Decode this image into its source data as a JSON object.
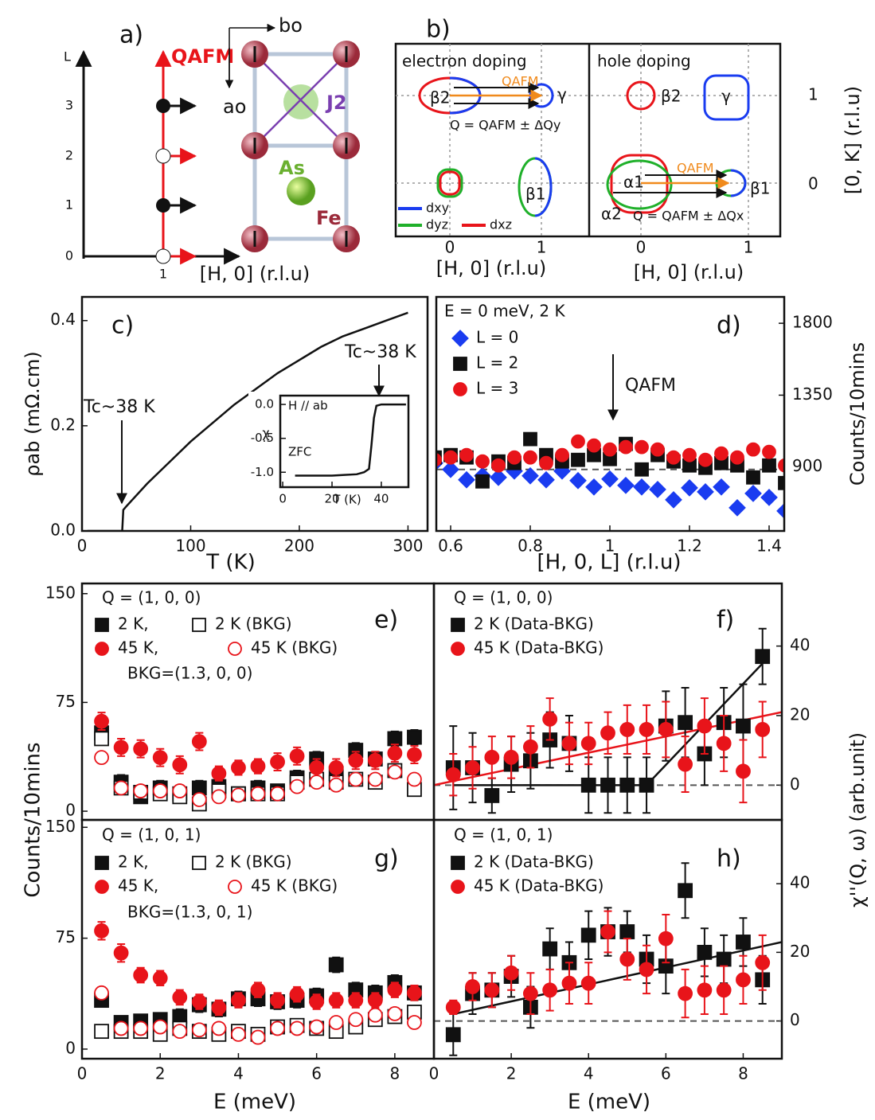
{
  "panel_a": {
    "label": "a)",
    "axis_label": "L",
    "l_ticks": [
      "0",
      "1",
      "2",
      "3"
    ],
    "h_tick": "1",
    "x_label": "[H, 0] (r.l.u)",
    "q_label": "QAFM",
    "b_axis": "bo",
    "a_axis": "ao",
    "j2": "J2",
    "as": "As",
    "fe": "Fe"
  },
  "panel_b": {
    "label": "b)",
    "left_title": "electron doping",
    "right_title": "hole doping",
    "beta2_left": "β2",
    "gamma_left": "γ",
    "q_left": "QAFM",
    "q_eq_left": "Q = QAFM ± ΔQy",
    "beta1_left": "β1",
    "dxy": "dxy",
    "dyz": "dyz",
    "dxz": "dxz",
    "beta2_right": "β2",
    "gamma_right": "γ",
    "alpha1": "α1",
    "alpha2": "α2",
    "q_right": "QAFM",
    "beta1_right": "β1",
    "q_eq_right": "Q = QAFM ± ΔQx",
    "k_ticks": [
      "1",
      "0"
    ],
    "k_label": "[0, K] (r.l.u)",
    "h_ticks_left": [
      "0",
      "1"
    ],
    "h_ticks_right": [
      "0",
      "1"
    ],
    "h_label_left": "[H, 0] (r.l.u)",
    "h_label_right": "[H, 0] (r.l.u)"
  },
  "chart_data": [
    {
      "type": "line",
      "x_label": "T (K)",
      "y_label": "ρab (mΩ.cm)",
      "annotations": [
        "c)",
        "Tc~38 K",
        "Tc~38 K"
      ],
      "color": "#111",
      "xlim": [
        0,
        318
      ],
      "ylim": [
        0,
        0.445
      ],
      "xticks": [
        0,
        100,
        200,
        300
      ],
      "yticks": [
        {
          "value": 0,
          "label": "0.0"
        },
        0.2,
        0.4
      ],
      "x": [
        5,
        37,
        38,
        40,
        60,
        80,
        100,
        120,
        140,
        160,
        180,
        200,
        220,
        240,
        260,
        280,
        300
      ],
      "values": [
        0,
        0,
        0.04,
        0.045,
        0.09,
        0.13,
        0.17,
        0.205,
        0.24,
        0.27,
        0.3,
        0.325,
        0.35,
        0.37,
        0.385,
        0.4,
        0.415
      ]
    },
    {
      "type": "line",
      "x_label": "T (K)",
      "y_label": "χ",
      "annotations": [
        "H // ab",
        "ZFC"
      ],
      "color": "#111",
      "xlim": [
        -1,
        51
      ],
      "ylim": [
        -1.22,
        0.13
      ],
      "xticks": [
        0,
        20,
        40
      ],
      "yticks": [
        {
          "value": 0,
          "label": "0.0"
        },
        -0.5,
        {
          "value": -1,
          "label": "-1.0"
        }
      ],
      "x": [
        5,
        10,
        15,
        20,
        25,
        30,
        33,
        35,
        36,
        37,
        38,
        40,
        45,
        50
      ],
      "values": [
        -1.05,
        -1.05,
        -1.05,
        -1.05,
        -1.04,
        -1.03,
        -1.0,
        -0.95,
        -0.6,
        -0.2,
        -0.02,
        0,
        0,
        0
      ]
    },
    {
      "type": "scatter",
      "x_label": "[H, 0, L] (r.l.u)",
      "y_label": "Counts/10mins",
      "annotations": [
        "E = 0 meV, 2 K",
        "QAFM",
        "d)"
      ],
      "y_side": "right",
      "xlim": [
        0.564,
        1.438
      ],
      "ylim": [
        500,
        1965
      ],
      "xticks": [
        0.6,
        0.8,
        1,
        1.2,
        1.4
      ],
      "yticks": [
        900,
        1350,
        1800
      ],
      "hline": 885,
      "x": [
        0.56,
        0.6,
        0.64,
        0.68,
        0.72,
        0.76,
        0.8,
        0.84,
        0.88,
        0.92,
        0.96,
        1,
        1.04,
        1.08,
        1.12,
        1.16,
        1.2,
        1.24,
        1.28,
        1.32,
        1.36,
        1.4,
        1.44
      ],
      "series": [
        {
          "name": "L = 0",
          "color": "#1a3cf0",
          "marker": "diamond",
          "filled": true,
          "values": [
            925,
            885,
            820,
            845,
            835,
            875,
            845,
            820,
            875,
            815,
            775,
            825,
            785,
            775,
            760,
            695,
            770,
            745,
            775,
            645,
            735,
            710,
            625
          ]
        },
        {
          "name": "L = 2",
          "color": "#111",
          "marker": "square",
          "filled": true,
          "values": [
            960,
            975,
            960,
            810,
            935,
            925,
            1075,
            975,
            935,
            945,
            975,
            950,
            1045,
            885,
            975,
            935,
            910,
            895,
            925,
            910,
            835,
            910,
            800
          ]
        },
        {
          "name": "L = 3",
          "color": "#e8141a",
          "marker": "circle",
          "filled": true,
          "values": [
            945,
            960,
            975,
            935,
            910,
            960,
            960,
            925,
            975,
            1060,
            1035,
            1010,
            1025,
            1025,
            1010,
            960,
            975,
            945,
            985,
            960,
            1010,
            995,
            910
          ]
        }
      ]
    },
    {
      "type": "scatter",
      "y_label": "Counts/10mins",
      "annotations": [
        "Q = (1, 0, 0)",
        "BKG=(1.3, 0, 0)",
        "e)"
      ],
      "xlim": [
        0,
        9
      ],
      "ylim": [
        -6,
        157
      ],
      "yticks": [
        0,
        75,
        150
      ],
      "x": [
        0.5,
        1,
        1.5,
        2,
        2.5,
        3,
        3.5,
        4,
        4.5,
        5,
        5.5,
        6,
        6.5,
        7,
        7.5,
        8,
        8.5
      ],
      "series": [
        {
          "name": "2 K,",
          "color": "#111",
          "marker": "square",
          "filled": true,
          "values": [
            54,
            20,
            10,
            16,
            12,
            16,
            17,
            12,
            16,
            14,
            23,
            36,
            26,
            42,
            36,
            50,
            51
          ],
          "errors": [
            5,
            5,
            4,
            5,
            4,
            5,
            5,
            4,
            5,
            4,
            5,
            5,
            5,
            5,
            5,
            5,
            5
          ]
        },
        {
          "name": "2 K (BKG)",
          "color": "#111",
          "marker": "square",
          "filled": false,
          "values": [
            50,
            16,
            13,
            12,
            10,
            5,
            14,
            12,
            12,
            12,
            20,
            22,
            20,
            22,
            20,
            28,
            15
          ]
        },
        {
          "name": "45 K,",
          "color": "#e8141a",
          "marker": "circle",
          "filled": true,
          "values": [
            62,
            44,
            43,
            37,
            32,
            48,
            26,
            30,
            31,
            34,
            38,
            30,
            30,
            35,
            35,
            40,
            39
          ],
          "errors": [
            6,
            6,
            6,
            6,
            6,
            6,
            5,
            5,
            5,
            6,
            6,
            6,
            6,
            6,
            6,
            6,
            6
          ]
        },
        {
          "name": "45 K (BKG)",
          "color": "#e8141a",
          "marker": "circle",
          "filled": false,
          "values": [
            37,
            16,
            14,
            14,
            14,
            8,
            10,
            11,
            12,
            12,
            17,
            20,
            18,
            22,
            22,
            27,
            22
          ]
        }
      ]
    },
    {
      "type": "scatter",
      "y_label": "χ''(Q, ω) (arb.unit)",
      "annotations": [
        "Q = (1, 0, 0)",
        "f)"
      ],
      "y_side": "right",
      "xlim": [
        0,
        9
      ],
      "ylim": [
        -10,
        58
      ],
      "yticks": [
        0,
        20,
        40
      ],
      "hline": 0,
      "x": [
        0.5,
        1,
        1.5,
        2,
        2.5,
        3,
        3.5,
        4,
        4.5,
        5,
        5.5,
        6,
        6.5,
        7,
        7.5,
        8,
        8.5
      ],
      "series": [
        {
          "name": "2 K (Data-BKG)",
          "color": "#111",
          "marker": "square",
          "filled": true,
          "values": [
            5,
            5,
            -3,
            6,
            7,
            13,
            12,
            0,
            0,
            0,
            0,
            17,
            18,
            9,
            18,
            17,
            37
          ],
          "errors": [
            12,
            10,
            5,
            8,
            8,
            8,
            8,
            8,
            8,
            8,
            8,
            10,
            10,
            9,
            10,
            12,
            8
          ]
        },
        {
          "name": "45 K (Data-BKG)",
          "color": "#e8141a",
          "marker": "circle",
          "filled": true,
          "values": [
            3,
            5,
            8,
            8,
            11,
            19,
            12,
            12,
            15,
            16,
            16,
            16,
            6,
            17,
            12,
            4,
            16
          ],
          "errors": [
            6,
            6,
            6,
            6,
            6,
            6,
            6,
            6,
            6,
            7,
            7,
            8,
            8,
            8,
            8,
            9,
            8
          ]
        }
      ],
      "fits": [
        {
          "color": "#e8141a",
          "x": [
            0,
            9
          ],
          "values": [
            0,
            21
          ]
        },
        {
          "color": "#111",
          "x": [
            0.5,
            5.5,
            8.5
          ],
          "values": [
            0,
            0,
            35
          ]
        }
      ]
    },
    {
      "type": "scatter",
      "x_label": "E (meV)",
      "annotations": [
        "Q = (1, 0, 1)",
        "BKG=(1.3, 0, 1)",
        "g)"
      ],
      "xlim": [
        0,
        9
      ],
      "ylim": [
        -6.5,
        155
      ],
      "xticks": [
        0,
        2,
        4,
        6,
        8
      ],
      "yticks": [
        0,
        75,
        150
      ],
      "x": [
        0.5,
        1,
        1.5,
        2,
        2.5,
        3,
        3.5,
        4,
        4.5,
        5,
        5.5,
        6,
        6.5,
        7,
        7.5,
        8,
        8.5
      ],
      "series": [
        {
          "name": "2 K,",
          "color": "#111",
          "marker": "square",
          "filled": true,
          "values": [
            33,
            18,
            19,
            20,
            22,
            30,
            27,
            34,
            34,
            32,
            33,
            36,
            57,
            40,
            38,
            45,
            38
          ],
          "errors": [
            4,
            4,
            4,
            4,
            5,
            5,
            5,
            5,
            5,
            5,
            5,
            5,
            5,
            5,
            5,
            5,
            5
          ]
        },
        {
          "name": "2 K (BKG)",
          "color": "#111",
          "marker": "square",
          "filled": false,
          "values": [
            12,
            12,
            12,
            10,
            14,
            12,
            10,
            12,
            10,
            15,
            16,
            14,
            12,
            15,
            20,
            22,
            25
          ]
        },
        {
          "name": "45 K,",
          "color": "#e8141a",
          "marker": "circle",
          "filled": true,
          "values": [
            80,
            65,
            50,
            48,
            35,
            32,
            28,
            33,
            40,
            33,
            37,
            32,
            33,
            33,
            33,
            40,
            38
          ],
          "errors": [
            6,
            6,
            5,
            5,
            5,
            5,
            5,
            5,
            5,
            5,
            5,
            5,
            5,
            5,
            5,
            5,
            5
          ]
        },
        {
          "name": "45 K (BKG)",
          "color": "#e8141a",
          "marker": "circle",
          "filled": false,
          "values": [
            38,
            14,
            14,
            15,
            12,
            13,
            14,
            10,
            8,
            14,
            14,
            15,
            18,
            20,
            23,
            24,
            18
          ]
        }
      ]
    },
    {
      "type": "scatter",
      "x_label": "E (meV)",
      "annotations": [
        "Q = (1, 0, 1)",
        "h)"
      ],
      "y_side": "right",
      "xlim": [
        0,
        9
      ],
      "ylim": [
        -11,
        58.6
      ],
      "xticks": [
        0,
        2,
        4,
        6,
        8
      ],
      "yticks": [
        0,
        20,
        40
      ],
      "hline": 0,
      "x": [
        0.5,
        1,
        1.5,
        2,
        2.5,
        3,
        3.5,
        4,
        4.5,
        5,
        5.5,
        6,
        6.5,
        7,
        7.5,
        8,
        8.5
      ],
      "series": [
        {
          "name": "2 K (Data-BKG)",
          "color": "#111",
          "marker": "square",
          "filled": true,
          "values": [
            -4,
            8,
            9,
            13,
            4,
            21,
            17,
            25,
            26,
            26,
            18,
            16,
            38,
            20,
            18,
            23,
            12
          ],
          "errors": [
            6,
            6,
            5,
            6,
            6,
            6,
            6,
            7,
            7,
            6,
            7,
            8,
            8,
            7,
            7,
            7,
            7
          ]
        },
        {
          "name": "45 K (Data-BKG)",
          "color": "#e8141a",
          "marker": "circle",
          "filled": true,
          "values": [
            4,
            10,
            9,
            14,
            8,
            9,
            11,
            11,
            26,
            18,
            15,
            24,
            8,
            9,
            9,
            12,
            17
          ],
          "errors": [
            2,
            4,
            5,
            5,
            6,
            6,
            6,
            6,
            6,
            6,
            7,
            7,
            7,
            7,
            7,
            7,
            8
          ]
        }
      ],
      "fits": [
        {
          "color": "#111",
          "x": [
            0.5,
            9
          ],
          "values": [
            2,
            23
          ]
        }
      ]
    }
  ]
}
